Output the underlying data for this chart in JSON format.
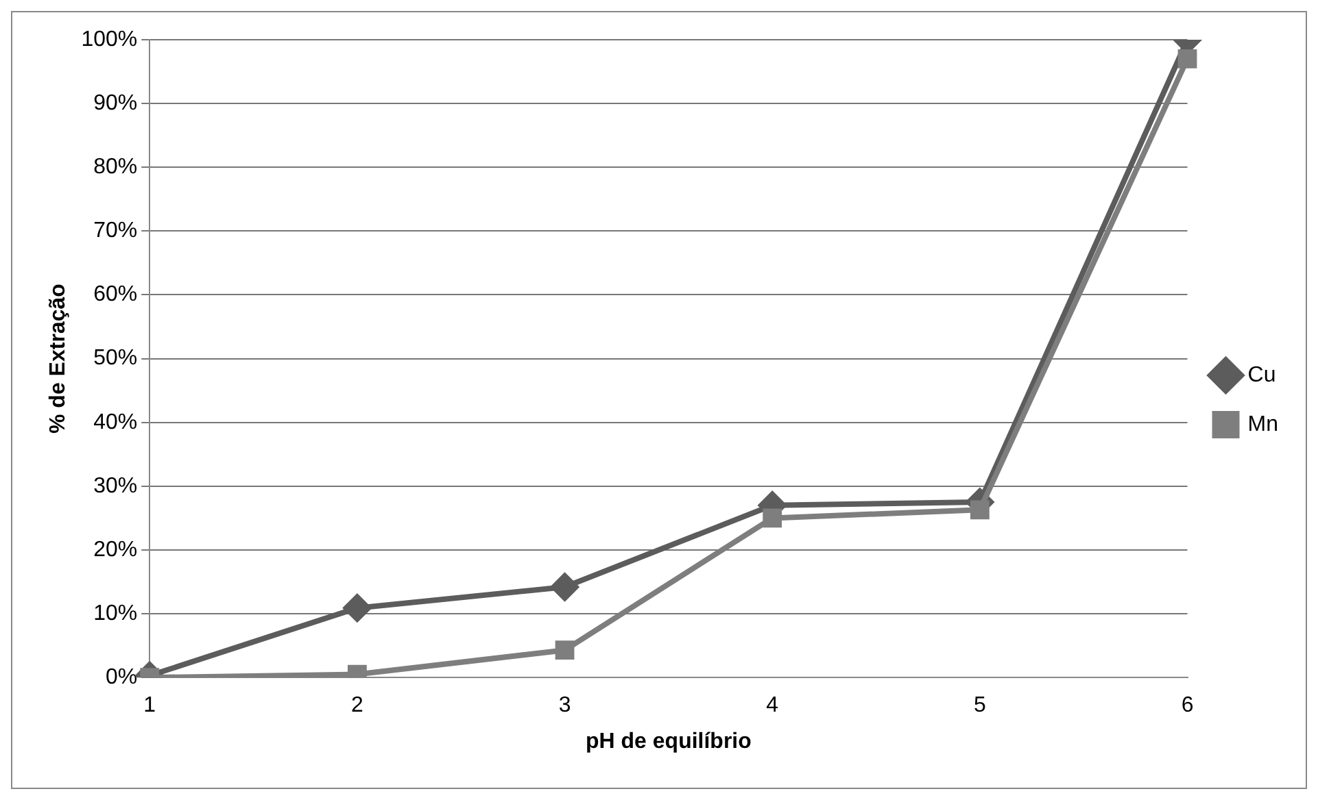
{
  "chart_data": {
    "type": "line",
    "xlabel": "pH de equilíbrio",
    "ylabel": "% de Extração",
    "categories": [
      "1",
      "2",
      "3",
      "4",
      "5",
      "6"
    ],
    "series": [
      {
        "name": "Cu",
        "color": "#5c5c5c",
        "marker": "diamond",
        "values": [
          0.3,
          10.9,
          14.2,
          27,
          27.5,
          100
        ]
      },
      {
        "name": "Mn",
        "color": "#7e7e7e",
        "marker": "square",
        "values": [
          0,
          0.5,
          4.3,
          25,
          26.3,
          97
        ]
      }
    ],
    "ylim": [
      0,
      100
    ],
    "yticks": [
      {
        "value": 0,
        "label": "0%"
      },
      {
        "value": 10,
        "label": "10%"
      },
      {
        "value": 20,
        "label": "20%"
      },
      {
        "value": 30,
        "label": "30%"
      },
      {
        "value": 40,
        "label": "40%"
      },
      {
        "value": 50,
        "label": "50%"
      },
      {
        "value": 60,
        "label": "60%"
      },
      {
        "value": 70,
        "label": "70%"
      },
      {
        "value": 80,
        "label": "80%"
      },
      {
        "value": 90,
        "label": "90%"
      },
      {
        "value": 100,
        "label": "100%"
      }
    ],
    "grid": "y",
    "legend": "right"
  }
}
